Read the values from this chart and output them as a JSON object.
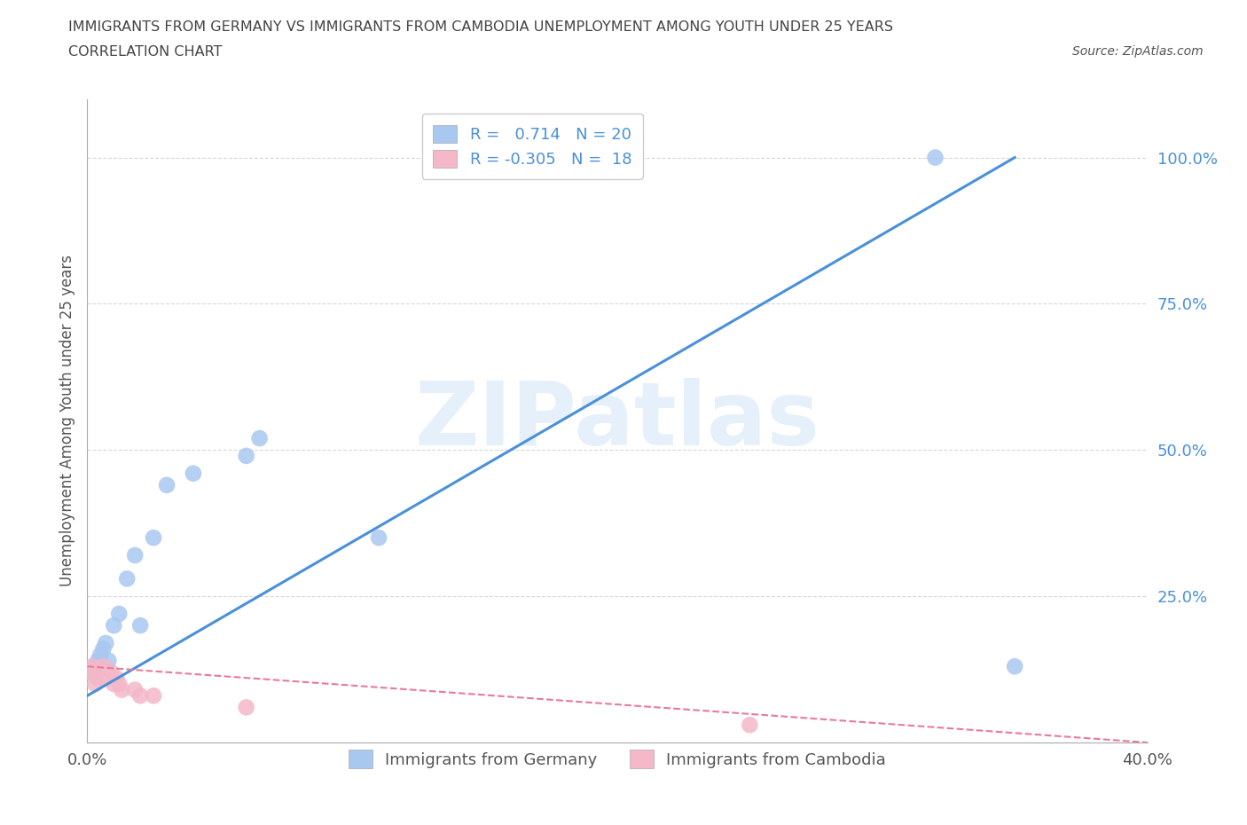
{
  "title_line1": "IMMIGRANTS FROM GERMANY VS IMMIGRANTS FROM CAMBODIA UNEMPLOYMENT AMONG YOUTH UNDER 25 YEARS",
  "title_line2": "CORRELATION CHART",
  "source": "Source: ZipAtlas.com",
  "ylabel": "Unemployment Among Youth under 25 years",
  "watermark": "ZIPatlas",
  "legend_blue_label": "R =   0.714   N = 20",
  "legend_pink_label": "R = -0.305   N =  18",
  "legend_label_germany": "Immigrants from Germany",
  "legend_label_cambodia": "Immigrants from Cambodia",
  "blue_color": "#a8c8f0",
  "pink_color": "#f4b8c8",
  "line_blue": "#4a90d9",
  "line_pink": "#e87a9a",
  "title_color": "#444444",
  "axis_color": "#555555",
  "tick_color": "#4a90d9",
  "grid_color": "#d8d8d8",
  "background_color": "#ffffff",
  "germany_x": [
    0.002,
    0.003,
    0.004,
    0.005,
    0.006,
    0.007,
    0.008,
    0.01,
    0.012,
    0.015,
    0.018,
    0.02,
    0.025,
    0.03,
    0.04,
    0.06,
    0.065,
    0.11,
    0.32,
    0.35
  ],
  "germany_y": [
    0.12,
    0.13,
    0.14,
    0.15,
    0.16,
    0.17,
    0.14,
    0.2,
    0.22,
    0.28,
    0.32,
    0.2,
    0.35,
    0.44,
    0.46,
    0.49,
    0.52,
    0.35,
    1.0,
    0.13
  ],
  "cambodia_x": [
    0.001,
    0.002,
    0.003,
    0.004,
    0.005,
    0.006,
    0.007,
    0.008,
    0.009,
    0.01,
    0.011,
    0.012,
    0.013,
    0.018,
    0.02,
    0.025,
    0.06,
    0.25
  ],
  "cambodia_y": [
    0.12,
    0.13,
    0.1,
    0.11,
    0.12,
    0.13,
    0.12,
    0.11,
    0.12,
    0.1,
    0.11,
    0.1,
    0.09,
    0.09,
    0.08,
    0.08,
    0.06,
    0.03
  ],
  "xlim_min": 0.0,
  "xlim_max": 0.4,
  "ylim_min": 0.0,
  "ylim_max": 1.1,
  "ytick_vals": [
    0.0,
    0.25,
    0.5,
    0.75,
    1.0
  ],
  "ytick_labels": [
    "",
    "25.0%",
    "50.0%",
    "75.0%",
    "100.0%"
  ],
  "xtick_vals": [
    0.0,
    0.4
  ],
  "xtick_labels": [
    "0.0%",
    "40.0%"
  ],
  "germany_line_x": [
    0.0,
    0.35
  ],
  "germany_line_y": [
    0.08,
    1.0
  ],
  "cambodia_line_x": [
    0.0,
    0.4
  ],
  "cambodia_line_y": [
    0.13,
    0.0
  ]
}
